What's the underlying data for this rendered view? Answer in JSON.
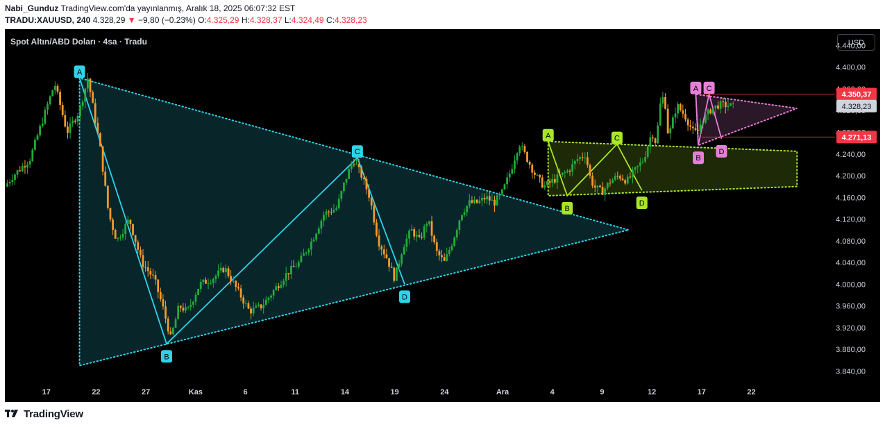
{
  "header": {
    "publisher": "Nabi_Gunduz",
    "published_text": "TradingView.com'da yayınlanmış, Aralık 18, 2025 06:07:32 EST",
    "symbol": "TRADU:XAUUSD, 240",
    "last_price": "4.328,29",
    "change_arrow": "▼",
    "change": "−9,80 (−0.23%)",
    "open_label": "O:",
    "open": "4.325,29",
    "high_label": "H:",
    "high": "4.328,37",
    "low_label": "L:",
    "low": "4.324,49",
    "close_label": "C:",
    "close": "4.328,23"
  },
  "chart_title": "Spot Altın/ABD Doları · 4sa · Tradu",
  "currency": "USD",
  "brand": "TradingView",
  "colors": {
    "background": "#000000",
    "up": "#22ab3a",
    "down": "#f29a2e",
    "pattern_cyan": "#2ed3e8",
    "pattern_green": "#a8e62a",
    "pattern_pink": "#e77fd8",
    "price_label_red": "#f23645",
    "axis_text": "#d1d4dc"
  },
  "chart_data": {
    "type": "candlestick",
    "ylim": [
      3820,
      4470
    ],
    "y_ticks": [
      3840,
      3880,
      3920,
      3960,
      4000,
      4040,
      4080,
      4120,
      4160,
      4200,
      4240,
      4280,
      4320,
      4360,
      4400,
      4440
    ],
    "y_tick_labels": [
      "3.840,00",
      "3.880,00",
      "3.920,00",
      "3.960,00",
      "4.000,00",
      "4.040,00",
      "4.080,00",
      "4.120,00",
      "4.160,00",
      "4.200,00",
      "4.240,00",
      "4.280,00",
      "4.320,00",
      "4.360,00",
      "4.400,00",
      "4.440,00"
    ],
    "x_ticks": [
      {
        "label": "17",
        "pos": 0.05
      },
      {
        "label": "22",
        "pos": 0.11
      },
      {
        "label": "27",
        "pos": 0.17
      },
      {
        "label": "Kas",
        "pos": 0.23
      },
      {
        "label": "6",
        "pos": 0.29
      },
      {
        "label": "11",
        "pos": 0.35
      },
      {
        "label": "14",
        "pos": 0.41
      },
      {
        "label": "19",
        "pos": 0.47
      },
      {
        "label": "24",
        "pos": 0.53
      },
      {
        "label": "Ara",
        "pos": 0.6
      },
      {
        "label": "4",
        "pos": 0.66
      },
      {
        "label": "9",
        "pos": 0.72
      },
      {
        "label": "12",
        "pos": 0.78
      },
      {
        "label": "17",
        "pos": 0.84
      },
      {
        "label": "22",
        "pos": 0.9
      }
    ],
    "price_labels": [
      {
        "value": 4350.37,
        "text": "4.350,37",
        "style": "red"
      },
      {
        "value": 4328.23,
        "text": "4.328,23",
        "style": "grey"
      },
      {
        "value": 4271.13,
        "text": "4.271,13",
        "style": "red"
      }
    ],
    "path": [
      [
        0,
        4180
      ],
      [
        0.01,
        4200
      ],
      [
        0.03,
        4230
      ],
      [
        0.045,
        4300
      ],
      [
        0.06,
        4370
      ],
      [
        0.075,
        4280
      ],
      [
        0.09,
        4320
      ],
      [
        0.1,
        4380
      ],
      [
        0.115,
        4250
      ],
      [
        0.125,
        4130
      ],
      [
        0.135,
        4080
      ],
      [
        0.15,
        4120
      ],
      [
        0.165,
        4040
      ],
      [
        0.18,
        4010
      ],
      [
        0.19,
        3960
      ],
      [
        0.2,
        3900
      ],
      [
        0.21,
        3960
      ],
      [
        0.22,
        3950
      ],
      [
        0.235,
        4000
      ],
      [
        0.25,
        4010
      ],
      [
        0.265,
        4030
      ],
      [
        0.28,
        3990
      ],
      [
        0.295,
        3950
      ],
      [
        0.31,
        3960
      ],
      [
        0.325,
        3990
      ],
      [
        0.34,
        4020
      ],
      [
        0.355,
        4040
      ],
      [
        0.37,
        4080
      ],
      [
        0.385,
        4130
      ],
      [
        0.4,
        4140
      ],
      [
        0.41,
        4190
      ],
      [
        0.42,
        4230
      ],
      [
        0.43,
        4200
      ],
      [
        0.44,
        4160
      ],
      [
        0.45,
        4080
      ],
      [
        0.46,
        4050
      ],
      [
        0.47,
        4010
      ],
      [
        0.48,
        4070
      ],
      [
        0.49,
        4100
      ],
      [
        0.5,
        4080
      ],
      [
        0.51,
        4120
      ],
      [
        0.52,
        4060
      ],
      [
        0.53,
        4040
      ],
      [
        0.54,
        4080
      ],
      [
        0.55,
        4130
      ],
      [
        0.56,
        4150
      ],
      [
        0.57,
        4150
      ],
      [
        0.58,
        4160
      ],
      [
        0.59,
        4150
      ],
      [
        0.6,
        4170
      ],
      [
        0.61,
        4210
      ],
      [
        0.62,
        4260
      ],
      [
        0.63,
        4230
      ],
      [
        0.64,
        4200
      ],
      [
        0.65,
        4180
      ],
      [
        0.66,
        4190
      ],
      [
        0.67,
        4200
      ],
      [
        0.68,
        4210
      ],
      [
        0.69,
        4230
      ],
      [
        0.7,
        4240
      ],
      [
        0.705,
        4200
      ],
      [
        0.71,
        4180
      ],
      [
        0.72,
        4170
      ],
      [
        0.73,
        4190
      ],
      [
        0.74,
        4200
      ],
      [
        0.75,
        4190
      ],
      [
        0.76,
        4210
      ],
      [
        0.77,
        4230
      ],
      [
        0.78,
        4280
      ],
      [
        0.785,
        4260
      ],
      [
        0.79,
        4330
      ],
      [
        0.795,
        4350
      ],
      [
        0.8,
        4270
      ],
      [
        0.81,
        4330
      ],
      [
        0.82,
        4310
      ],
      [
        0.83,
        4280
      ],
      [
        0.835,
        4280
      ],
      [
        0.84,
        4300
      ],
      [
        0.85,
        4320
      ],
      [
        0.86,
        4330
      ],
      [
        0.87,
        4330
      ],
      [
        0.878,
        4328
      ]
    ],
    "patterns": [
      {
        "name": "cyan-abcd",
        "color": "pattern_cyan",
        "points": [
          {
            "label": "A",
            "t": 0.09,
            "value": 4380,
            "side": "top"
          },
          {
            "label": "B",
            "t": 0.195,
            "value": 3890,
            "side": "bottom"
          },
          {
            "label": "C",
            "t": 0.425,
            "value": 4233,
            "side": "top"
          },
          {
            "label": "D",
            "t": 0.482,
            "value": 4000,
            "side": "bottom"
          }
        ],
        "triangle": [
          [
            0.09,
            4380
          ],
          [
            0.09,
            3850
          ],
          [
            0.752,
            4100
          ]
        ]
      },
      {
        "name": "green-abcd",
        "color": "pattern_green",
        "points": [
          {
            "label": "A",
            "t": 0.655,
            "value": 4263,
            "side": "top"
          },
          {
            "label": "B",
            "t": 0.678,
            "value": 4163,
            "side": "bottom"
          },
          {
            "label": "C",
            "t": 0.738,
            "value": 4258,
            "side": "top"
          },
          {
            "label": "D",
            "t": 0.768,
            "value": 4173,
            "side": "bottom"
          }
        ],
        "channel": [
          [
            0.655,
            4263
          ],
          [
            0.955,
            4245
          ],
          [
            0.955,
            4180
          ],
          [
            0.655,
            4163
          ]
        ]
      },
      {
        "name": "pink-abcd",
        "color": "pattern_pink",
        "points": [
          {
            "label": "A",
            "t": 0.833,
            "value": 4350,
            "side": "top"
          },
          {
            "label": "B",
            "t": 0.836,
            "value": 4256,
            "side": "bottom"
          },
          {
            "label": "C",
            "t": 0.849,
            "value": 4350,
            "side": "top"
          },
          {
            "label": "D",
            "t": 0.864,
            "value": 4268,
            "side": "bottom"
          }
        ],
        "triangle": [
          [
            0.833,
            4350
          ],
          [
            0.836,
            4256
          ],
          [
            0.955,
            4324
          ]
        ]
      }
    ]
  }
}
